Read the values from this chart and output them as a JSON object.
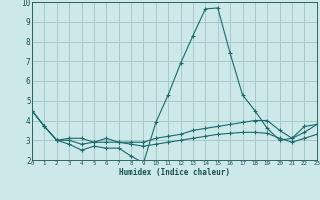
{
  "title": "",
  "xlabel": "Humidex (Indice chaleur)",
  "ylabel": "",
  "bg_color": "#cce8e8",
  "grid_color": "#a8c8c8",
  "line_color": "#1a6b6b",
  "axis_label_color": "#1a5050",
  "tick_label_color": "#1a5050",
  "x_ticks": [
    0,
    1,
    2,
    3,
    4,
    5,
    6,
    7,
    8,
    9,
    10,
    11,
    12,
    13,
    14,
    15,
    16,
    17,
    18,
    19,
    20,
    21,
    22,
    23
  ],
  "ylim": [
    2,
    10
  ],
  "xlim": [
    0,
    23
  ],
  "series": [
    [
      4.5,
      3.7,
      3.0,
      2.8,
      2.5,
      2.7,
      2.6,
      2.6,
      2.2,
      1.85,
      3.9,
      5.3,
      6.9,
      8.3,
      9.65,
      9.7,
      7.4,
      5.3,
      4.5,
      3.6,
      3.0,
      3.1,
      3.7,
      3.8
    ],
    [
      4.5,
      3.7,
      3.0,
      3.1,
      3.1,
      2.9,
      3.1,
      2.9,
      2.9,
      2.9,
      3.1,
      3.2,
      3.3,
      3.5,
      3.6,
      3.7,
      3.8,
      3.9,
      4.0,
      4.0,
      3.5,
      3.1,
      3.4,
      3.8
    ],
    [
      4.5,
      3.7,
      3.0,
      3.0,
      2.8,
      2.9,
      2.9,
      2.9,
      2.8,
      2.7,
      2.8,
      2.9,
      3.0,
      3.1,
      3.2,
      3.3,
      3.35,
      3.4,
      3.4,
      3.35,
      3.1,
      2.9,
      3.1,
      3.3
    ]
  ]
}
